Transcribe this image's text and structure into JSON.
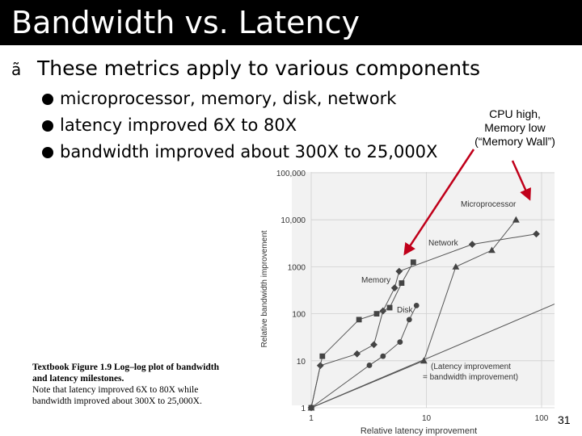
{
  "slide": {
    "title": "Bandwidth vs. Latency",
    "bullet_main_marker": "ã",
    "bullet_main": "These metrics apply to various components",
    "sub_bullets": [
      "microprocessor, memory, disk, network",
      "latency improved 6X to 80X",
      "bandwidth improved about 300X to 25,000X"
    ],
    "annotation": [
      "CPU high,",
      "Memory low",
      "(“Memory Wall”)"
    ],
    "caption": {
      "line1": "Textbook Figure 1.9 Log–log plot of bandwidth",
      "line2": "and latency milestones.",
      "line3": "Note that latency improved 6X to 80X while",
      "line4": "bandwidth improved about 300X to 25,000X."
    },
    "page_number": "31"
  },
  "chart_data": {
    "type": "scatter",
    "x_scale": "log",
    "y_scale": "log",
    "xlim": [
      1,
      100
    ],
    "ylim": [
      1,
      100000
    ],
    "xlabel": "Relative latency improvement",
    "ylabel": "Relative bandwidth improvement",
    "x_ticks": [
      "1",
      "10",
      "100"
    ],
    "y_ticks": [
      "1",
      "10",
      "100",
      "1000",
      "10,000",
      "100,000"
    ],
    "series": [
      {
        "name": "Microprocessor",
        "marker": "diamond",
        "points": [
          [
            1,
            1
          ],
          [
            1.2,
            7.9
          ],
          [
            2.5,
            14
          ],
          [
            3.5,
            22
          ],
          [
            4.2,
            115
          ],
          [
            5.3,
            355
          ],
          [
            5.8,
            800
          ],
          [
            25,
            3000
          ],
          [
            90,
            5000
          ]
        ]
      },
      {
        "name": "Memory",
        "marker": "square",
        "points": [
          [
            1,
            1
          ],
          [
            1.25,
            12.5
          ],
          [
            2.6,
            75
          ],
          [
            3.7,
            100
          ],
          [
            4.8,
            135
          ],
          [
            6.1,
            450
          ],
          [
            7.7,
            1250
          ]
        ]
      },
      {
        "name": "Network",
        "marker": "triangle",
        "points": [
          [
            1,
            1
          ],
          [
            9.5,
            10
          ],
          [
            18,
            1000
          ],
          [
            37,
            2250
          ],
          [
            60,
            10000
          ]
        ]
      },
      {
        "name": "Disk",
        "marker": "circle",
        "points": [
          [
            1,
            1
          ],
          [
            3.2,
            8
          ],
          [
            4.2,
            12.5
          ],
          [
            5.9,
            25
          ],
          [
            7.1,
            75
          ],
          [
            8.2,
            150
          ]
        ]
      }
    ],
    "reference_line": {
      "label_line1": "(Latency improvement",
      "label_line2": "= bandwidth improvement)",
      "points": [
        [
          1,
          1
        ],
        [
          100,
          100
        ]
      ]
    },
    "series_labels": {
      "Microprocessor": "Microprocessor",
      "Network": "Network",
      "Memory": "Memory",
      "Disk": "Disk"
    },
    "arrow_color": "#c0001a",
    "grid": true
  }
}
